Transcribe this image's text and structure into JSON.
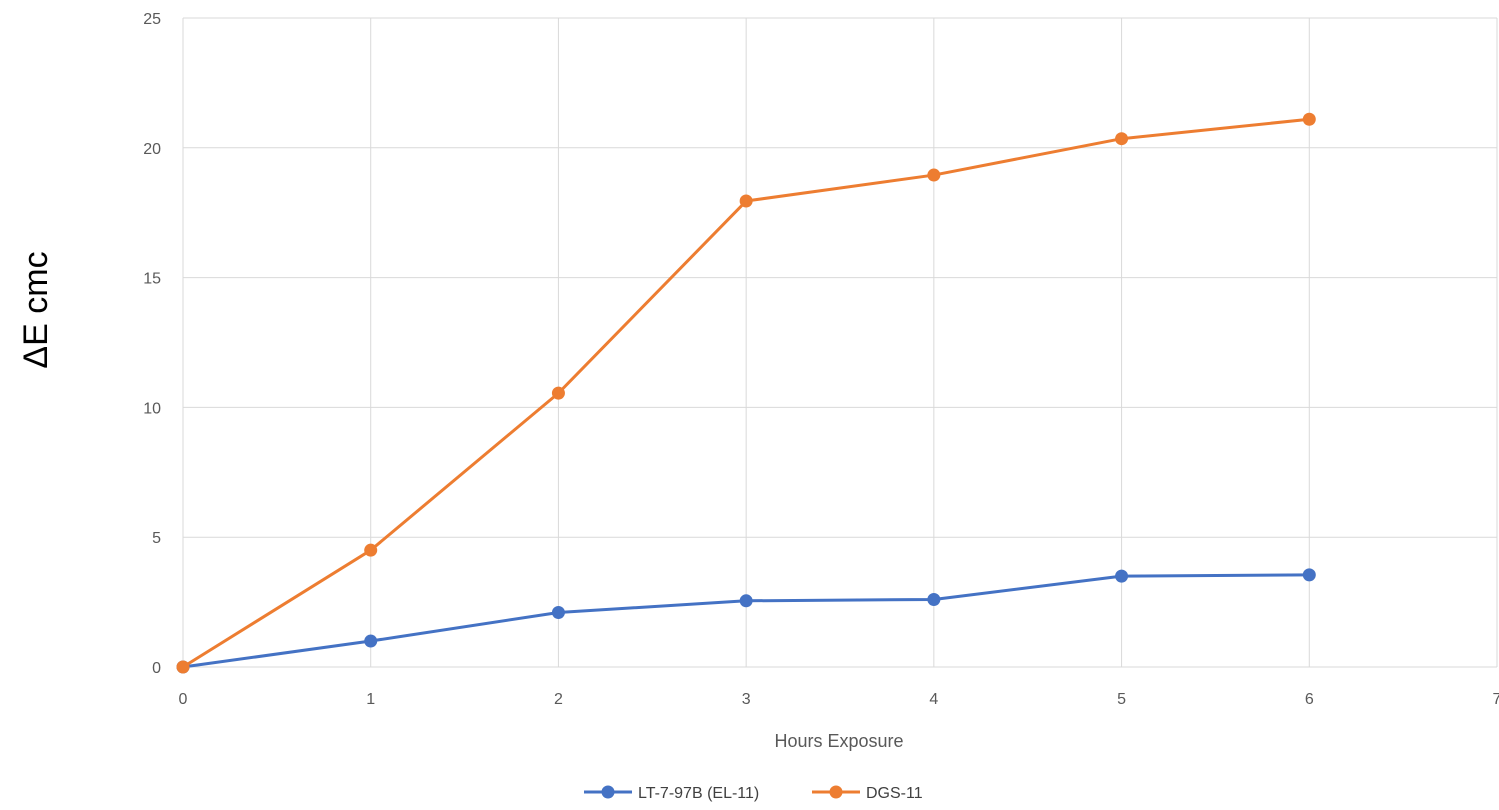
{
  "chart_data": {
    "type": "line",
    "title": "",
    "xlabel": "Hours Exposure",
    "ylabel": "ΔE cmc",
    "xlim": [
      0,
      7
    ],
    "ylim": [
      0,
      25
    ],
    "x_ticks": [
      0,
      1,
      2,
      3,
      4,
      5,
      6,
      7
    ],
    "y_ticks": [
      0,
      5,
      10,
      15,
      20,
      25
    ],
    "grid": true,
    "legend_position": "bottom",
    "series": [
      {
        "name": "LT-7-97B (EL-11)",
        "color": "#4472C4",
        "x": [
          0,
          1,
          2,
          3,
          4,
          5,
          6
        ],
        "values": [
          0,
          1.0,
          2.1,
          2.55,
          2.6,
          3.5,
          3.55
        ]
      },
      {
        "name": "DGS-11",
        "color": "#ED7D31",
        "x": [
          0,
          1,
          2,
          3,
          4,
          5,
          6
        ],
        "values": [
          0,
          4.5,
          10.55,
          17.95,
          18.95,
          20.35,
          21.1
        ]
      }
    ]
  }
}
